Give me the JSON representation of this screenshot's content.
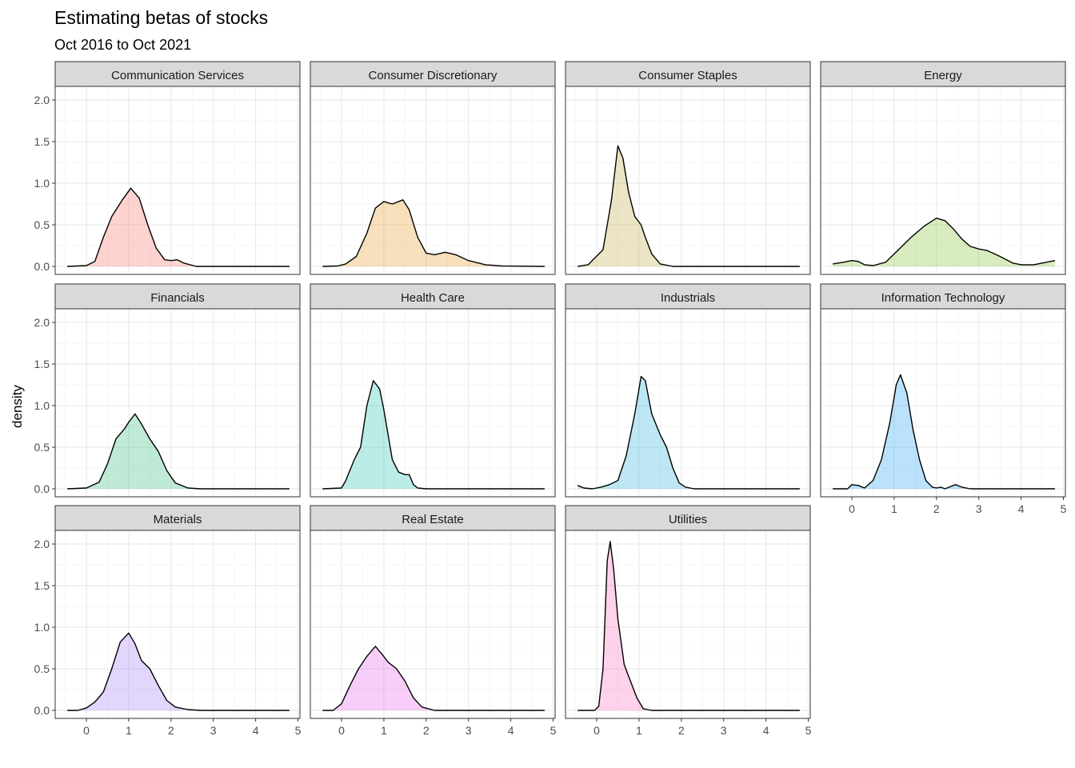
{
  "chart_data": {
    "type": "area",
    "title": "Estimating betas of stocks",
    "subtitle": "Oct 2016 to Oct 2021",
    "xlabel": "",
    "ylabel": "density",
    "xlim": [
      -0.5,
      4.85
    ],
    "ylim": [
      0,
      2.05
    ],
    "x_ticks": [
      0,
      1,
      2,
      3,
      4,
      5
    ],
    "y_ticks": [
      0.0,
      0.5,
      1.0,
      1.5,
      2.0
    ],
    "y_tick_labels": [
      "0.0",
      "0.5",
      "1.0",
      "1.5",
      "2.0"
    ],
    "grid": true,
    "legend": "none",
    "layout": {
      "columns": 4,
      "rows": 3
    },
    "panels": [
      {
        "name": "Communication Services",
        "fill": "#F8766D",
        "points": [
          [
            -0.45,
            0
          ],
          [
            0,
            0.01
          ],
          [
            0.2,
            0.06
          ],
          [
            0.4,
            0.35
          ],
          [
            0.6,
            0.6
          ],
          [
            0.85,
            0.8
          ],
          [
            1.05,
            0.94
          ],
          [
            1.25,
            0.82
          ],
          [
            1.45,
            0.5
          ],
          [
            1.65,
            0.22
          ],
          [
            1.85,
            0.08
          ],
          [
            2.0,
            0.07
          ],
          [
            2.15,
            0.08
          ],
          [
            2.3,
            0.04
          ],
          [
            2.6,
            0.0
          ],
          [
            3.0,
            0
          ],
          [
            4.8,
            0
          ]
        ]
      },
      {
        "name": "Consumer Discretionary",
        "fill": "#E6A132",
        "points": [
          [
            -0.45,
            0
          ],
          [
            -0.1,
            0.005
          ],
          [
            0.1,
            0.03
          ],
          [
            0.35,
            0.12
          ],
          [
            0.6,
            0.4
          ],
          [
            0.8,
            0.7
          ],
          [
            1.0,
            0.78
          ],
          [
            1.2,
            0.75
          ],
          [
            1.45,
            0.8
          ],
          [
            1.6,
            0.68
          ],
          [
            1.8,
            0.35
          ],
          [
            2.0,
            0.16
          ],
          [
            2.2,
            0.14
          ],
          [
            2.45,
            0.17
          ],
          [
            2.7,
            0.14
          ],
          [
            3.0,
            0.07
          ],
          [
            3.4,
            0.02
          ],
          [
            3.8,
            0.005
          ],
          [
            4.8,
            0
          ]
        ]
      },
      {
        "name": "Consumer Staples",
        "fill": "#C5B150",
        "points": [
          [
            -0.45,
            0
          ],
          [
            -0.2,
            0.02
          ],
          [
            -0.05,
            0.1
          ],
          [
            0.15,
            0.2
          ],
          [
            0.35,
            0.8
          ],
          [
            0.5,
            1.45
          ],
          [
            0.62,
            1.3
          ],
          [
            0.75,
            0.9
          ],
          [
            0.9,
            0.6
          ],
          [
            1.05,
            0.5
          ],
          [
            1.15,
            0.35
          ],
          [
            1.3,
            0.15
          ],
          [
            1.5,
            0.03
          ],
          [
            1.8,
            0
          ],
          [
            4.8,
            0
          ]
        ]
      },
      {
        "name": "Energy",
        "fill": "#89C63D",
        "points": [
          [
            -0.45,
            0.03
          ],
          [
            -0.2,
            0.05
          ],
          [
            0,
            0.07
          ],
          [
            0.15,
            0.06
          ],
          [
            0.3,
            0.02
          ],
          [
            0.5,
            0.01
          ],
          [
            0.8,
            0.05
          ],
          [
            1.1,
            0.2
          ],
          [
            1.4,
            0.35
          ],
          [
            1.7,
            0.48
          ],
          [
            2.0,
            0.58
          ],
          [
            2.2,
            0.55
          ],
          [
            2.4,
            0.45
          ],
          [
            2.6,
            0.33
          ],
          [
            2.8,
            0.24
          ],
          [
            3.0,
            0.21
          ],
          [
            3.2,
            0.19
          ],
          [
            3.5,
            0.12
          ],
          [
            3.8,
            0.04
          ],
          [
            4.0,
            0.02
          ],
          [
            4.3,
            0.02
          ],
          [
            4.6,
            0.05
          ],
          [
            4.8,
            0.07
          ]
        ]
      },
      {
        "name": "Financials",
        "fill": "#3EC07E",
        "points": [
          [
            -0.45,
            0
          ],
          [
            0,
            0.01
          ],
          [
            0.3,
            0.08
          ],
          [
            0.5,
            0.3
          ],
          [
            0.7,
            0.6
          ],
          [
            0.9,
            0.72
          ],
          [
            1.0,
            0.8
          ],
          [
            1.15,
            0.9
          ],
          [
            1.3,
            0.78
          ],
          [
            1.5,
            0.6
          ],
          [
            1.7,
            0.45
          ],
          [
            1.9,
            0.22
          ],
          [
            2.1,
            0.07
          ],
          [
            2.4,
            0.01
          ],
          [
            2.7,
            0
          ],
          [
            4.8,
            0
          ]
        ]
      },
      {
        "name": "Health Care",
        "fill": "#33C4B3",
        "points": [
          [
            -0.45,
            0
          ],
          [
            0,
            0.01
          ],
          [
            0.1,
            0.1
          ],
          [
            0.3,
            0.35
          ],
          [
            0.45,
            0.5
          ],
          [
            0.6,
            1.0
          ],
          [
            0.75,
            1.3
          ],
          [
            0.9,
            1.2
          ],
          [
            1.0,
            0.95
          ],
          [
            1.1,
            0.65
          ],
          [
            1.2,
            0.35
          ],
          [
            1.35,
            0.2
          ],
          [
            1.5,
            0.17
          ],
          [
            1.6,
            0.17
          ],
          [
            1.7,
            0.05
          ],
          [
            1.8,
            0.01
          ],
          [
            2.0,
            0
          ],
          [
            4.8,
            0
          ]
        ]
      },
      {
        "name": "Industrials",
        "fill": "#37B5DE",
        "points": [
          [
            -0.45,
            0.04
          ],
          [
            -0.3,
            0.01
          ],
          [
            -0.1,
            0.0
          ],
          [
            0.1,
            0.02
          ],
          [
            0.3,
            0.05
          ],
          [
            0.5,
            0.1
          ],
          [
            0.7,
            0.4
          ],
          [
            0.9,
            0.9
          ],
          [
            1.05,
            1.35
          ],
          [
            1.15,
            1.3
          ],
          [
            1.3,
            0.9
          ],
          [
            1.5,
            0.65
          ],
          [
            1.65,
            0.5
          ],
          [
            1.8,
            0.25
          ],
          [
            1.95,
            0.07
          ],
          [
            2.1,
            0.02
          ],
          [
            2.3,
            0
          ],
          [
            4.8,
            0
          ]
        ]
      },
      {
        "name": "Information Technology",
        "fill": "#32A8F8",
        "points": [
          [
            -0.45,
            0
          ],
          [
            -0.1,
            0.0
          ],
          [
            0,
            0.05
          ],
          [
            0.15,
            0.04
          ],
          [
            0.3,
            0.01
          ],
          [
            0.5,
            0.1
          ],
          [
            0.7,
            0.35
          ],
          [
            0.9,
            0.8
          ],
          [
            1.05,
            1.25
          ],
          [
            1.15,
            1.37
          ],
          [
            1.3,
            1.15
          ],
          [
            1.45,
            0.7
          ],
          [
            1.6,
            0.35
          ],
          [
            1.75,
            0.1
          ],
          [
            1.9,
            0.02
          ],
          [
            2.0,
            0.01
          ],
          [
            2.1,
            0.02
          ],
          [
            2.2,
            0.0
          ],
          [
            2.3,
            0.02
          ],
          [
            2.45,
            0.05
          ],
          [
            2.6,
            0.02
          ],
          [
            2.8,
            0
          ],
          [
            4.8,
            0
          ]
        ]
      },
      {
        "name": "Materials",
        "fill": "#A682F6",
        "points": [
          [
            -0.45,
            0
          ],
          [
            -0.2,
            0.0
          ],
          [
            0,
            0.03
          ],
          [
            0.2,
            0.1
          ],
          [
            0.4,
            0.22
          ],
          [
            0.6,
            0.5
          ],
          [
            0.8,
            0.82
          ],
          [
            1.0,
            0.93
          ],
          [
            1.15,
            0.8
          ],
          [
            1.3,
            0.6
          ],
          [
            1.5,
            0.5
          ],
          [
            1.7,
            0.3
          ],
          [
            1.9,
            0.12
          ],
          [
            2.1,
            0.04
          ],
          [
            2.4,
            0.01
          ],
          [
            2.7,
            0
          ],
          [
            4.8,
            0
          ]
        ]
      },
      {
        "name": "Real Estate",
        "fill": "#E56BEE",
        "points": [
          [
            -0.45,
            0
          ],
          [
            -0.2,
            0.0
          ],
          [
            0,
            0.08
          ],
          [
            0.2,
            0.3
          ],
          [
            0.4,
            0.5
          ],
          [
            0.6,
            0.65
          ],
          [
            0.8,
            0.77
          ],
          [
            0.95,
            0.68
          ],
          [
            1.1,
            0.58
          ],
          [
            1.3,
            0.5
          ],
          [
            1.5,
            0.35
          ],
          [
            1.7,
            0.15
          ],
          [
            1.9,
            0.04
          ],
          [
            2.2,
            0
          ],
          [
            4.8,
            0
          ]
        ]
      },
      {
        "name": "Utilities",
        "fill": "#FB77BE",
        "points": [
          [
            -0.45,
            0
          ],
          [
            -0.05,
            0.0
          ],
          [
            0.05,
            0.05
          ],
          [
            0.15,
            0.5
          ],
          [
            0.25,
            1.8
          ],
          [
            0.32,
            2.03
          ],
          [
            0.4,
            1.7
          ],
          [
            0.5,
            1.1
          ],
          [
            0.65,
            0.55
          ],
          [
            0.8,
            0.35
          ],
          [
            0.95,
            0.15
          ],
          [
            1.1,
            0.02
          ],
          [
            1.3,
            0
          ],
          [
            4.8,
            0
          ]
        ]
      }
    ]
  }
}
